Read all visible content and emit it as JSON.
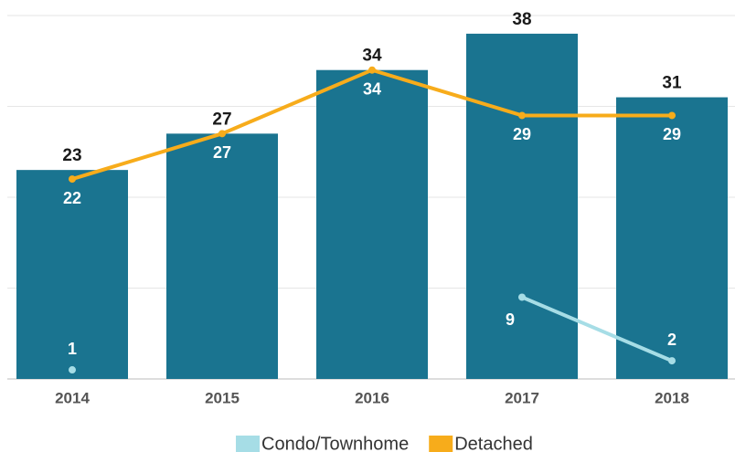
{
  "chart_data": {
    "type": "bar",
    "categories": [
      "2014",
      "2015",
      "2016",
      "2017",
      "2018"
    ],
    "ylim": [
      0,
      40
    ],
    "yticks": [
      0,
      10,
      20,
      30,
      40
    ],
    "grid": true,
    "series": [
      {
        "type": "bar",
        "color": "#1a7490",
        "values": [
          23,
          27,
          34,
          38,
          31
        ]
      },
      {
        "type": "line",
        "name": "Condo/Townhome",
        "color": "#a6dde6",
        "values": [
          1,
          null,
          null,
          9,
          2
        ]
      },
      {
        "type": "line",
        "name": "Detached",
        "color": "#f7ac1b",
        "values": [
          22,
          27,
          34,
          29,
          29
        ]
      }
    ]
  }
}
